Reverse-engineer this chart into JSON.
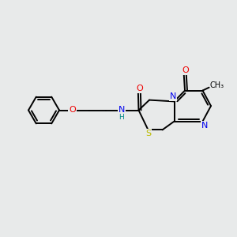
{
  "background_color": "#e8eaea",
  "atom_colors": {
    "C": "#000000",
    "N": "#0000ee",
    "O": "#ee0000",
    "S": "#bbbb00",
    "H": "#008888"
  },
  "bond_color": "#000000",
  "bond_width": 1.4,
  "figsize": [
    3.0,
    3.0
  ],
  "dpi": 100
}
